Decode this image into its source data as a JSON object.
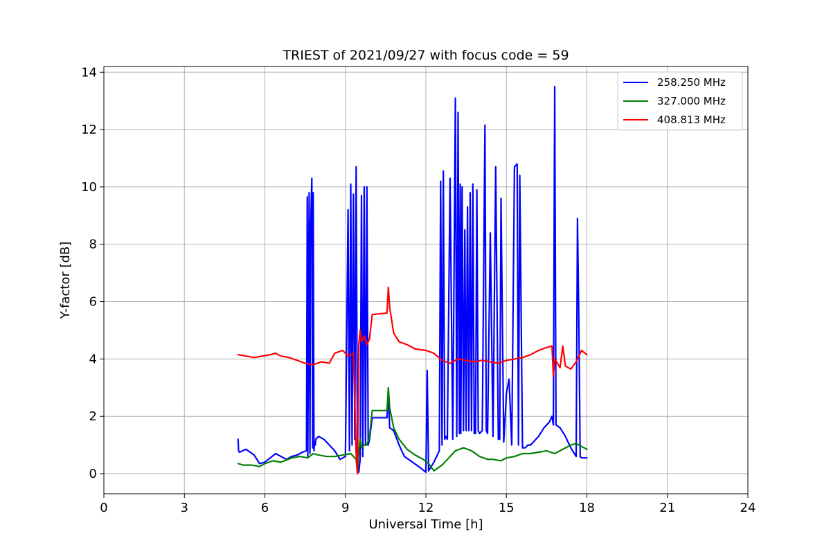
{
  "chart_data": {
    "type": "line",
    "title": "TRIEST of 2021/09/27 with focus code = 59",
    "xlabel": "Universal Time [h]",
    "ylabel": "Y-factor [dB]",
    "xlim": [
      0,
      24
    ],
    "ylim": [
      -0.7,
      14.2
    ],
    "xticks": [
      0,
      3,
      6,
      9,
      12,
      15,
      18,
      21,
      24
    ],
    "yticks": [
      0,
      2,
      4,
      6,
      8,
      10,
      12,
      14
    ],
    "grid": true,
    "legend_position": "top-right",
    "series": [
      {
        "name": "258.250 MHz",
        "color": "#0000ff",
        "x": [
          5.0,
          5.02,
          5.05,
          5.3,
          5.6,
          5.8,
          6.0,
          6.2,
          6.4,
          6.6,
          6.8,
          7.0,
          7.2,
          7.4,
          7.55,
          7.58,
          7.6,
          7.65,
          7.68,
          7.7,
          7.75,
          7.78,
          7.8,
          7.83,
          7.85,
          7.88,
          7.9,
          8.0,
          8.2,
          8.4,
          8.6,
          8.8,
          9.0,
          9.1,
          9.15,
          9.2,
          9.25,
          9.3,
          9.35,
          9.4,
          9.45,
          9.5,
          9.55,
          9.6,
          9.65,
          9.7,
          9.75,
          9.8,
          9.85,
          9.9,
          10.0,
          10.55,
          10.6,
          10.65,
          10.8,
          11.0,
          11.2,
          11.5,
          11.8,
          12.0,
          12.05,
          12.1,
          12.3,
          12.5,
          12.55,
          12.6,
          12.65,
          12.7,
          12.75,
          12.8,
          12.9,
          13.0,
          13.1,
          13.15,
          13.2,
          13.25,
          13.28,
          13.3,
          13.35,
          13.4,
          13.45,
          13.5,
          13.55,
          13.6,
          13.65,
          13.7,
          13.75,
          13.8,
          13.85,
          13.9,
          13.95,
          14.0,
          14.1,
          14.2,
          14.25,
          14.3,
          14.4,
          14.5,
          14.6,
          14.7,
          14.75,
          14.8,
          14.9,
          15.0,
          15.1,
          15.2,
          15.3,
          15.4,
          15.45,
          15.5,
          15.6,
          15.7,
          15.8,
          15.9,
          16.0,
          16.2,
          16.4,
          16.6,
          16.7,
          16.75,
          16.8,
          16.85,
          17.0,
          17.2,
          17.4,
          17.6,
          17.65,
          17.7,
          17.75,
          17.8,
          18.0
        ],
        "y": [
          1.2,
          0.8,
          0.75,
          0.85,
          0.65,
          0.35,
          0.4,
          0.55,
          0.7,
          0.6,
          0.5,
          0.6,
          0.65,
          0.75,
          0.8,
          9.65,
          0.6,
          9.8,
          0.7,
          8.35,
          10.3,
          0.9,
          9.8,
          0.8,
          1.1,
          1.0,
          1.2,
          1.3,
          1.2,
          1.0,
          0.8,
          0.5,
          0.6,
          9.2,
          0.8,
          10.1,
          1.0,
          9.75,
          1.2,
          10.7,
          0.5,
          0.05,
          0.5,
          9.7,
          0.6,
          10.0,
          1.0,
          10.0,
          1.0,
          1.2,
          1.95,
          1.95,
          2.85,
          1.6,
          1.5,
          1.0,
          0.6,
          0.4,
          0.2,
          0.05,
          3.6,
          0.1,
          0.4,
          0.8,
          10.2,
          1.0,
          10.55,
          1.2,
          1.3,
          1.2,
          10.3,
          1.2,
          13.1,
          1.3,
          12.6,
          1.4,
          10.1,
          1.4,
          10.0,
          1.5,
          8.5,
          1.5,
          9.3,
          1.5,
          9.8,
          1.5,
          10.1,
          1.4,
          1.4,
          9.9,
          1.5,
          1.4,
          1.5,
          12.15,
          1.5,
          1.4,
          8.4,
          1.3,
          10.7,
          1.2,
          1.2,
          9.6,
          1.1,
          2.8,
          3.3,
          1.0,
          10.7,
          10.8,
          1.0,
          10.4,
          0.9,
          0.9,
          1.0,
          1.0,
          1.1,
          1.3,
          1.6,
          1.8,
          2.0,
          1.7,
          13.5,
          1.7,
          1.6,
          1.3,
          0.9,
          0.6,
          8.9,
          5.3,
          0.6,
          0.55,
          0.55
        ]
      },
      {
        "name": "327.000 MHz",
        "color": "#008000",
        "x": [
          5.0,
          5.2,
          5.5,
          5.8,
          6.0,
          6.3,
          6.6,
          7.0,
          7.3,
          7.6,
          7.8,
          8.0,
          8.3,
          8.6,
          8.9,
          9.2,
          9.4,
          9.45,
          9.5,
          9.55,
          9.6,
          9.7,
          9.8,
          9.9,
          10.0,
          10.55,
          10.6,
          10.65,
          10.8,
          11.0,
          11.3,
          11.6,
          11.9,
          12.1,
          12.3,
          12.6,
          12.9,
          13.1,
          13.4,
          13.7,
          14.0,
          14.3,
          14.5,
          14.8,
          15.0,
          15.3,
          15.6,
          15.9,
          16.2,
          16.5,
          16.8,
          17.1,
          17.4,
          17.6,
          17.8,
          18.0
        ],
        "y": [
          0.35,
          0.3,
          0.3,
          0.25,
          0.35,
          0.45,
          0.4,
          0.55,
          0.6,
          0.55,
          0.7,
          0.65,
          0.6,
          0.6,
          0.65,
          0.7,
          0.5,
          0.0,
          0.8,
          1.2,
          0.9,
          1.0,
          1.0,
          1.3,
          2.2,
          2.2,
          3.0,
          2.3,
          1.6,
          1.2,
          0.85,
          0.65,
          0.5,
          0.35,
          0.1,
          0.3,
          0.6,
          0.8,
          0.9,
          0.8,
          0.6,
          0.5,
          0.5,
          0.45,
          0.55,
          0.6,
          0.7,
          0.7,
          0.75,
          0.8,
          0.7,
          0.85,
          1.0,
          1.05,
          0.95,
          0.85
        ]
      },
      {
        "name": "408.813 MHz",
        "color": "#ff0000",
        "x": [
          5.0,
          5.3,
          5.6,
          5.9,
          6.2,
          6.4,
          6.6,
          6.9,
          7.2,
          7.5,
          7.8,
          8.1,
          8.4,
          8.6,
          8.9,
          9.1,
          9.3,
          9.4,
          9.45,
          9.5,
          9.55,
          9.6,
          9.7,
          9.8,
          9.9,
          10.0,
          10.55,
          10.6,
          10.65,
          10.8,
          11.0,
          11.3,
          11.6,
          12.0,
          12.3,
          12.6,
          12.9,
          13.2,
          13.5,
          13.8,
          14.1,
          14.4,
          14.7,
          15.0,
          15.3,
          15.6,
          15.9,
          16.2,
          16.5,
          16.7,
          16.75,
          16.8,
          17.0,
          17.1,
          17.2,
          17.4,
          17.6,
          17.8,
          18.0
        ],
        "y": [
          4.15,
          4.1,
          4.05,
          4.1,
          4.15,
          4.2,
          4.1,
          4.05,
          3.95,
          3.85,
          3.8,
          3.9,
          3.85,
          4.2,
          4.3,
          4.1,
          4.2,
          0.7,
          0.0,
          4.5,
          5.0,
          4.6,
          4.8,
          4.5,
          4.7,
          5.55,
          5.6,
          6.5,
          5.8,
          4.9,
          4.6,
          4.5,
          4.35,
          4.3,
          4.2,
          3.95,
          3.85,
          4.0,
          3.95,
          3.9,
          3.95,
          3.9,
          3.85,
          3.95,
          4.0,
          4.05,
          4.15,
          4.3,
          4.4,
          4.45,
          3.4,
          4.0,
          3.7,
          4.45,
          3.75,
          3.65,
          3.9,
          4.3,
          4.15
        ]
      }
    ]
  }
}
